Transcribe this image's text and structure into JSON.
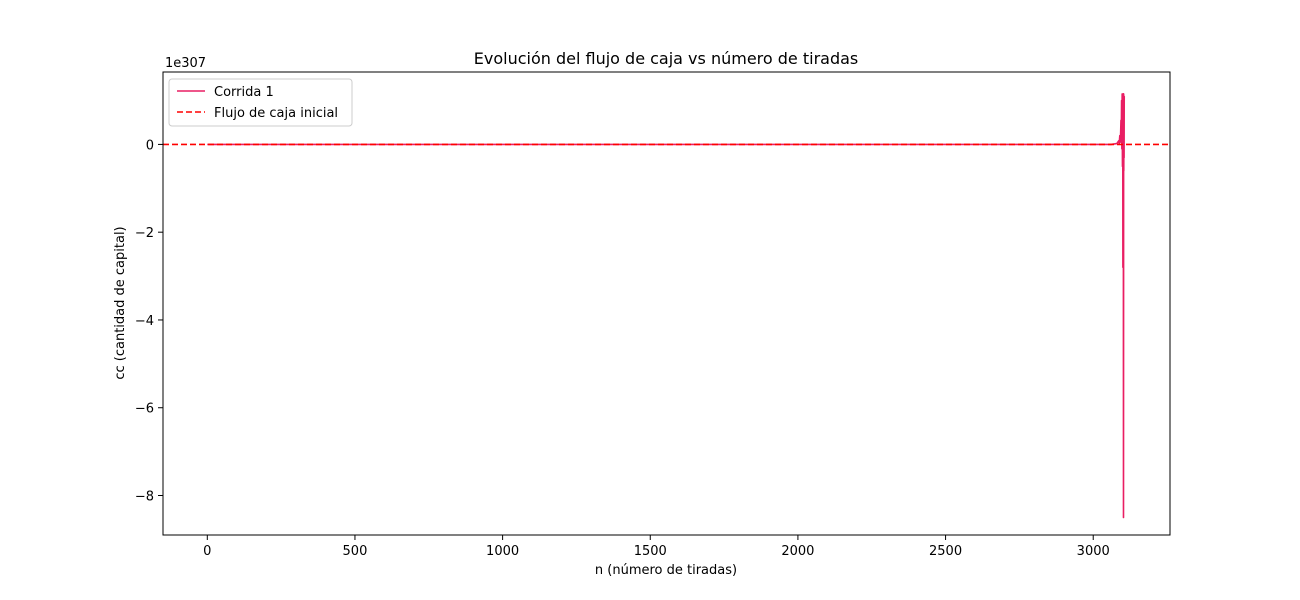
{
  "chart_data": {
    "type": "line",
    "title": "Evolución del flujo de caja vs número de tiradas",
    "xlabel": "n (número de tiradas)",
    "ylabel": "cc (cantidad de capital)",
    "y_offset_text": "1e307",
    "xlim": [
      -150,
      3260
    ],
    "ylim": [
      -8.9,
      1.65
    ],
    "x_ticks": [
      0,
      500,
      1000,
      1500,
      2000,
      2500,
      3000
    ],
    "x_tick_labels": [
      "0",
      "500",
      "1000",
      "1500",
      "2000",
      "2500",
      "3000"
    ],
    "y_ticks": [
      0,
      -2,
      -4,
      -6,
      -8
    ],
    "y_tick_labels": [
      "0",
      "−2",
      "−4",
      "−6",
      "−8"
    ],
    "grid": false,
    "legend_position": "upper-left",
    "series": [
      {
        "name": "Corrida 1",
        "color": "#e91e63",
        "style": "solid",
        "x": [
          0,
          500,
          1000,
          1500,
          2000,
          2500,
          3000,
          3060,
          3080,
          3086,
          3088,
          3090,
          3092,
          3094,
          3095,
          3096,
          3097,
          3098,
          3099,
          3100,
          3100.5,
          3101,
          3101.5,
          3102,
          3102.5,
          3103,
          3103.5,
          3104,
          3104.5,
          3105
        ],
        "y": [
          0,
          0,
          0,
          0,
          0,
          0,
          0,
          0,
          0.02,
          0.08,
          0.02,
          0.2,
          0.05,
          0.55,
          0.1,
          1.0,
          -0.1,
          1.15,
          -0.5,
          1.1,
          -2.8,
          1.15,
          -0.4,
          1.15,
          -8.5,
          1.15,
          -0.6,
          1.1,
          -0.3,
          1.1
        ]
      },
      {
        "name": "Flujo de caja inicial",
        "color": "#ff0000",
        "style": "dashed",
        "y_constant": 0
      }
    ]
  }
}
